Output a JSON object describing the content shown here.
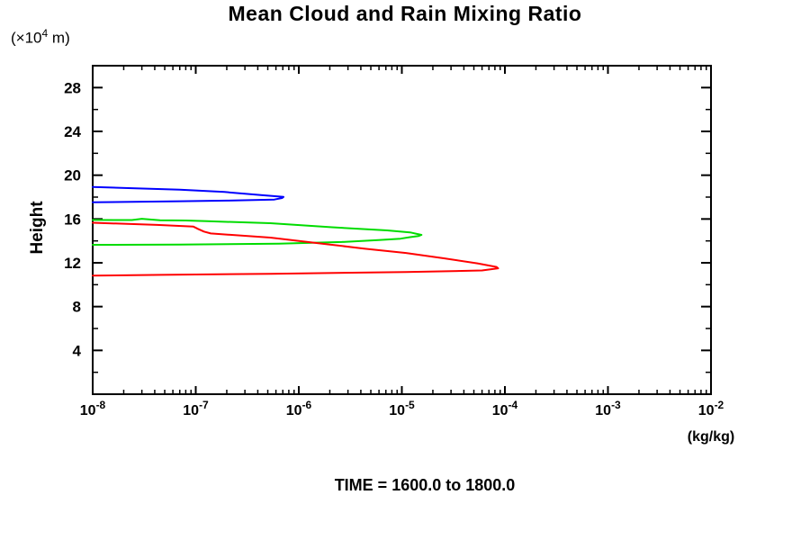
{
  "page": {
    "title": "Mean Cloud and Rain Mixing Ratio",
    "y_axis_unit": {
      "prefix": "(×10",
      "exponent": "4",
      "suffix": " m)"
    },
    "y_axis_title": "Height",
    "x_axis_unit": "(kg/kg)",
    "time_annotation": "TIME = 1600.0 to 1800.0"
  },
  "colors": {
    "axis": "#000000",
    "background": "#ffffff",
    "blue_series": "#0000ff",
    "green_series": "#00dc00",
    "red_series": "#ff0000"
  },
  "chart_data": {
    "type": "line",
    "title": "Mean Cloud and Rain Mixing Ratio",
    "xlabel": "(kg/kg)",
    "ylabel": "Height (×10^4 m)",
    "x_scale": "log10",
    "xlim": [
      1e-08,
      0.01
    ],
    "ylim": [
      0,
      30
    ],
    "x_tick_exponents": [
      -8,
      -7,
      -6,
      -5,
      -4,
      -3,
      -2
    ],
    "y_major_ticks": [
      4,
      8,
      12,
      16,
      20,
      24,
      28
    ],
    "y_minor_ticks": [
      2,
      6,
      10,
      14,
      18,
      22,
      26
    ],
    "grid": false,
    "legend": "none",
    "annotation": "TIME = 1600.0 to 1800.0",
    "series": [
      {
        "name": "blue",
        "color": "#0000ff",
        "points": [
          [
            1e-08,
            18.93
          ],
          [
            2.6e-08,
            18.8
          ],
          [
            7e-08,
            18.68
          ],
          [
            1.9e-07,
            18.47
          ],
          [
            4.3e-07,
            18.18
          ],
          [
            7.1e-07,
            18.02
          ],
          [
            6.9e-07,
            17.92
          ],
          [
            5.8e-07,
            17.78
          ],
          [
            2e-07,
            17.68
          ],
          [
            7e-08,
            17.62
          ],
          [
            1e-08,
            17.52
          ]
        ]
      },
      {
        "name": "green",
        "color": "#00dc00",
        "points": [
          [
            1e-08,
            15.91
          ],
          [
            2.4e-08,
            15.9
          ],
          [
            3e-08,
            16.02
          ],
          [
            4.5e-08,
            15.88
          ],
          [
            8e-08,
            15.86
          ],
          [
            1.3e-07,
            15.8
          ],
          [
            5.3e-07,
            15.62
          ],
          [
            2.1e-06,
            15.25
          ],
          [
            7.2e-06,
            14.96
          ],
          [
            1.2e-05,
            14.78
          ],
          [
            1.55e-05,
            14.55
          ],
          [
            1.45e-05,
            14.44
          ],
          [
            1.2e-05,
            14.34
          ],
          [
            9.7e-06,
            14.2
          ],
          [
            5.9e-06,
            14.08
          ],
          [
            2.6e-06,
            13.9
          ],
          [
            6.4e-07,
            13.74
          ],
          [
            7e-08,
            13.66
          ],
          [
            1e-08,
            13.64
          ]
        ]
      },
      {
        "name": "red",
        "color": "#ff0000",
        "points": [
          [
            1e-08,
            15.66
          ],
          [
            4.2e-08,
            15.46
          ],
          [
            9.5e-08,
            15.3
          ],
          [
            1.05e-07,
            15.1
          ],
          [
            1.2e-07,
            14.85
          ],
          [
            1.4e-07,
            14.68
          ],
          [
            5.3e-07,
            14.3
          ],
          [
            1.8e-06,
            13.72
          ],
          [
            4.3e-06,
            13.3
          ],
          [
            1.1e-05,
            12.9
          ],
          [
            2.6e-05,
            12.4
          ],
          [
            5.4e-05,
            11.95
          ],
          [
            8.3e-05,
            11.62
          ],
          [
            8.6e-05,
            11.5
          ],
          [
            6e-05,
            11.3
          ],
          [
            1.1e-05,
            11.15
          ],
          [
            5.3e-07,
            11.0
          ],
          [
            4.7e-08,
            10.9
          ],
          [
            1e-08,
            10.83
          ]
        ]
      }
    ]
  }
}
